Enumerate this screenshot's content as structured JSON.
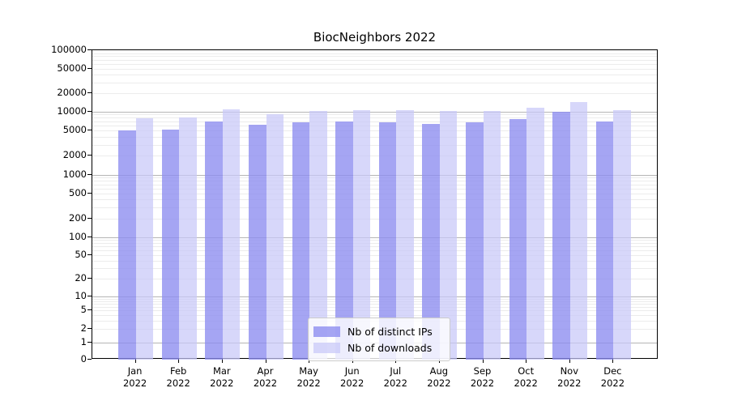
{
  "chart_data": {
    "type": "bar",
    "title": "BiocNeighbors 2022",
    "categories": [
      "Jan",
      "Feb",
      "Mar",
      "Apr",
      "May",
      "Jun",
      "Jul",
      "Aug",
      "Sep",
      "Oct",
      "Nov",
      "Dec"
    ],
    "year": "2022",
    "series": [
      {
        "name": "Nb of distinct IPs",
        "color": "#8c8cf0",
        "alpha": 0.78,
        "values": [
          5100,
          5200,
          7000,
          6200,
          6800,
          7000,
          6800,
          6400,
          6700,
          7500,
          9800,
          7000
        ]
      },
      {
        "name": "Nb of downloads",
        "color": "#c8c8f8",
        "alpha": 0.72,
        "values": [
          7900,
          8100,
          10800,
          9000,
          10100,
          10600,
          10400,
          10100,
          10300,
          11500,
          14300,
          10700
        ]
      }
    ],
    "yticks": [
      0,
      1,
      2,
      5,
      10,
      20,
      50,
      100,
      200,
      500,
      1000,
      2000,
      5000,
      10000,
      20000,
      50000,
      100000
    ],
    "ylim": [
      0,
      100000
    ],
    "yscale": "log-with-zero",
    "grid": true,
    "legend_position": "bottom-center"
  }
}
